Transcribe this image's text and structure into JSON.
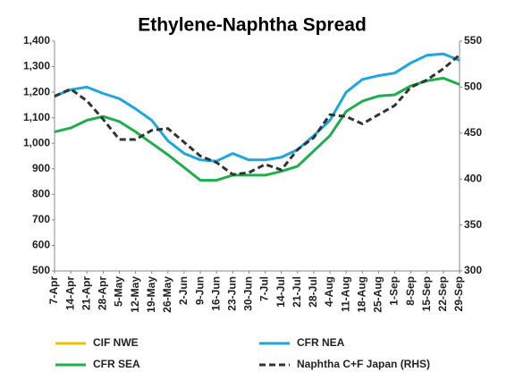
{
  "chart_data": {
    "type": "line",
    "title": "Ethylene-Naphtha Spread",
    "categories": [
      "7-Apr",
      "14-Apr",
      "21-Apr",
      "28-Apr",
      "5-May",
      "12-May",
      "19-May",
      "26-May",
      "2-Jun",
      "9-Jun",
      "16-Jun",
      "23-Jun",
      "30-Jun",
      "7-Jul",
      "14-Jul",
      "21-Jul",
      "28-Jul",
      "4-Aug",
      "11-Aug",
      "18-Aug",
      "25-Aug",
      "1-Sep",
      "8-Sep",
      "15-Sep",
      "22-Sep",
      "29-Sep"
    ],
    "series": [
      {
        "name": "CIF NWE",
        "color": "#f5c000",
        "values": [
          null,
          null,
          null,
          null,
          null,
          null,
          null,
          null,
          null,
          null,
          null,
          null,
          null,
          null,
          null,
          null,
          null,
          null,
          null,
          null,
          null,
          null,
          null,
          null,
          null,
          null
        ]
      },
      {
        "name": "CFR NEA",
        "color": "#1ea6e0",
        "values": [
          1185,
          1210,
          1220,
          1195,
          1175,
          1135,
          1090,
          1010,
          960,
          935,
          930,
          960,
          935,
          935,
          945,
          975,
          1030,
          1090,
          1200,
          1250,
          1265,
          1275,
          1315,
          1345,
          1350,
          1325
        ]
      },
      {
        "name": "CFR SEA",
        "color": "#1fae4b",
        "values": [
          1045,
          1060,
          1090,
          1105,
          1085,
          1045,
          1000,
          955,
          905,
          855,
          855,
          875,
          875,
          875,
          890,
          910,
          970,
          1030,
          1125,
          1165,
          1185,
          1190,
          1225,
          1245,
          1255,
          1230
        ]
      },
      {
        "name": "Naphtha C+F Japan (RHS)",
        "color": "#333333",
        "dashed": true,
        "axis": "y2",
        "values": [
          490,
          498,
          485,
          465,
          443,
          443,
          453,
          455,
          440,
          425,
          418,
          405,
          407,
          416,
          410,
          432,
          445,
          470,
          468,
          460,
          470,
          480,
          500,
          508,
          520,
          535
        ]
      }
    ],
    "ylim": [
      500,
      1400
    ],
    "yticks": [
      500,
      600,
      700,
      800,
      900,
      {
        "value": 1000,
        "label": "1,000"
      },
      {
        "value": 1100,
        "label": "1,100"
      },
      {
        "value": 1200,
        "label": "1,200"
      },
      {
        "value": 1300,
        "label": "1,300"
      },
      {
        "value": 1400,
        "label": "1,400"
      }
    ],
    "y2lim": [
      300,
      550
    ],
    "y2ticks": [
      300,
      350,
      400,
      450,
      500,
      550
    ],
    "grid": false
  }
}
